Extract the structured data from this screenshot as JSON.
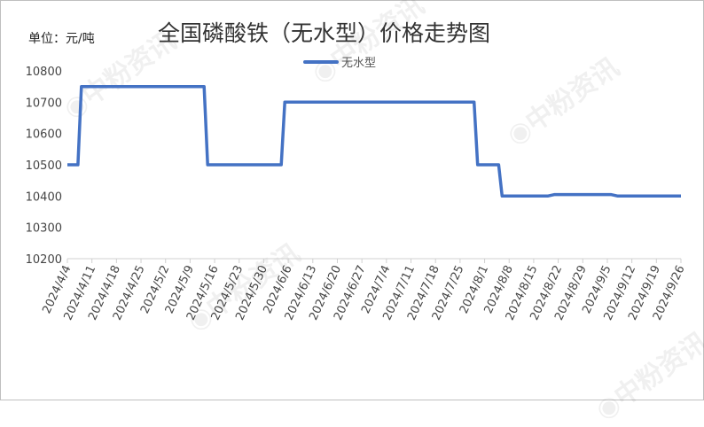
{
  "chart_data": {
    "type": "line",
    "title": "全国磷酸铁（无水型）价格走势图",
    "unit_label": "单位：元/吨",
    "legend": "top",
    "grid": false,
    "ylim": [
      10200,
      10800
    ],
    "yticks": [
      10200,
      10300,
      10400,
      10500,
      10600,
      10700,
      10800
    ],
    "xticks": [
      "2024/4/4",
      "2024/4/11",
      "2024/4/18",
      "2024/4/25",
      "2024/5/2",
      "2024/5/9",
      "2024/5/16",
      "2024/5/23",
      "2024/5/30",
      "2024/6/6",
      "2024/6/13",
      "2024/6/20",
      "2024/6/27",
      "2024/7/4",
      "2024/7/11",
      "2024/7/18",
      "2024/7/25",
      "2024/8/1",
      "2024/8/8",
      "2024/8/15",
      "2024/8/22",
      "2024/8/29",
      "2024/9/5",
      "2024/9/12",
      "2024/9/19",
      "2024/9/26"
    ],
    "series": [
      {
        "name": "无水型",
        "color": "#4472c4",
        "points": [
          [
            "2024-04-04",
            10500
          ],
          [
            "2024-04-07",
            10500
          ],
          [
            "2024-04-08",
            10750
          ],
          [
            "2024-05-13",
            10750
          ],
          [
            "2024-05-14",
            10500
          ],
          [
            "2024-06-04",
            10500
          ],
          [
            "2024-06-05",
            10700
          ],
          [
            "2024-07-29",
            10700
          ],
          [
            "2024-07-30",
            10500
          ],
          [
            "2024-08-05",
            10500
          ],
          [
            "2024-08-06",
            10400
          ],
          [
            "2024-08-19",
            10400
          ],
          [
            "2024-08-21",
            10405
          ],
          [
            "2024-09-06",
            10405
          ],
          [
            "2024-09-08",
            10400
          ],
          [
            "2024-09-26",
            10400
          ]
        ]
      }
    ]
  },
  "watermark": "中粉资讯"
}
